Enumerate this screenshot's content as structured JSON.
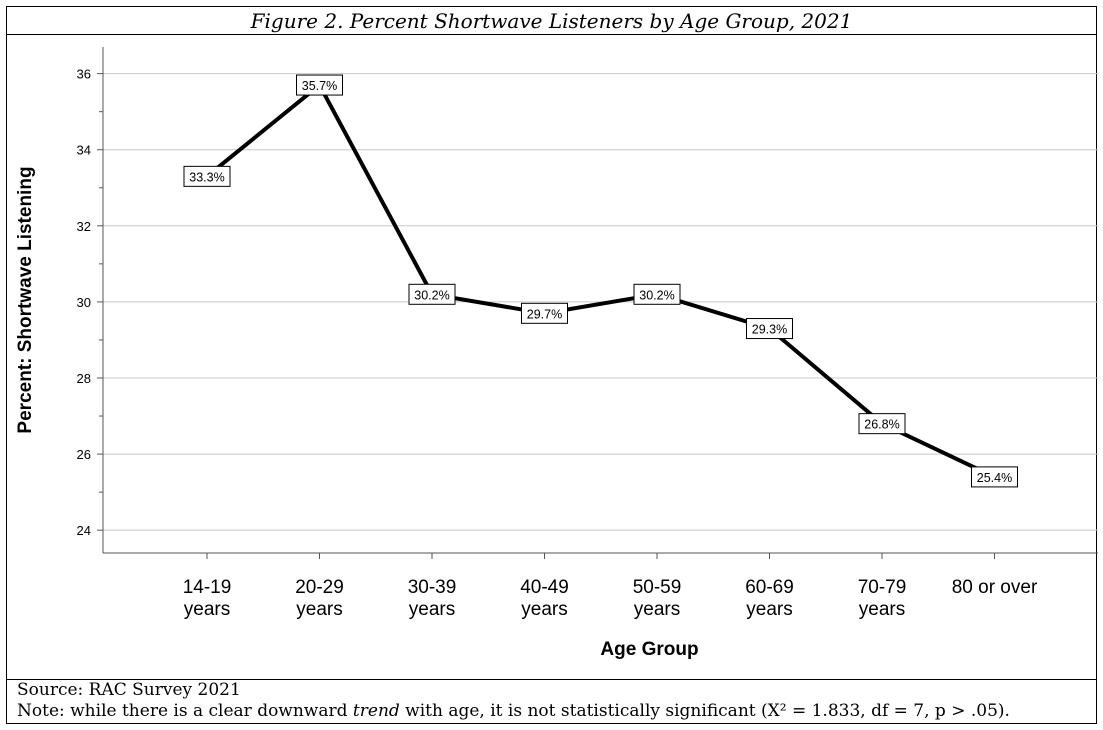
{
  "figure": {
    "title": "Figure 2. Percent Shortwave Listeners by Age Group, 2021"
  },
  "footer": {
    "source": "Source: RAC Survey 2021",
    "note_before": "Note: while there is a clear downward ",
    "note_emph": "trend",
    "note_after": " with age, it is not statistically significant (X² = 1.833, df = 7, p > .05)."
  },
  "chart_data": {
    "type": "line",
    "xlabel": "Age Group",
    "ylabel": "Percent: Shortwave Listening",
    "ylim": [
      23.4,
      36.7
    ],
    "yticks": [
      24,
      26,
      28,
      30,
      32,
      34,
      36
    ],
    "grid": true,
    "categories": [
      [
        "14-19",
        "years"
      ],
      [
        "20-29",
        "years"
      ],
      [
        "30-39",
        "years"
      ],
      [
        "40-49",
        "years"
      ],
      [
        "50-59",
        "years"
      ],
      [
        "60-69",
        "years"
      ],
      [
        "70-79",
        "years"
      ],
      [
        "80 or over"
      ]
    ],
    "values": [
      33.3,
      35.7,
      30.2,
      29.7,
      30.2,
      29.3,
      26.8,
      25.4
    ],
    "value_labels": [
      "33.3%",
      "35.7%",
      "30.2%",
      "29.7%",
      "30.2%",
      "29.3%",
      "26.8%",
      "25.4%"
    ],
    "line_color": "#000000",
    "grid_color": "#c8c8c8"
  }
}
